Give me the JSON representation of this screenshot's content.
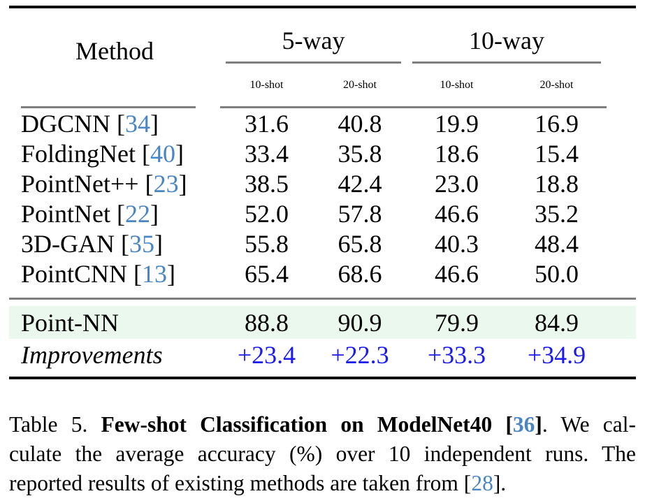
{
  "colors": {
    "cite_blue": "#4a86c4",
    "improvement_blue": "#1b1bee",
    "highlight_green": "#ebf8ed",
    "rule_black": "#101010",
    "rule_gray": "#7e7e7e"
  },
  "table": {
    "header": {
      "method_label": "Method",
      "groups": [
        {
          "label": "5-way"
        },
        {
          "label": "10-way"
        }
      ],
      "subheaders": [
        "10-shot",
        "20-shot",
        "10-shot",
        "20-shot"
      ]
    },
    "rows": [
      {
        "prefix": "DGCNN [",
        "cite": "34",
        "suffix": "]",
        "values": [
          "31.6",
          "40.8",
          "19.9",
          "16.9"
        ]
      },
      {
        "prefix": "FoldingNet [",
        "cite": "40",
        "suffix": "]",
        "values": [
          "33.4",
          "35.8",
          "18.6",
          "15.4"
        ]
      },
      {
        "prefix": "PointNet++ [",
        "cite": "23",
        "suffix": "]",
        "values": [
          "38.5",
          "42.4",
          "23.0",
          "18.8"
        ]
      },
      {
        "prefix": "PointNet [",
        "cite": "22",
        "suffix": "]",
        "values": [
          "52.0",
          "57.8",
          "46.6",
          "35.2"
        ]
      },
      {
        "prefix": "3D-GAN [",
        "cite": "35",
        "suffix": "]",
        "values": [
          "55.8",
          "65.8",
          "40.3",
          "48.4"
        ]
      },
      {
        "prefix": "PointCNN [",
        "cite": "13",
        "suffix": "]",
        "values": [
          "65.4",
          "68.6",
          "46.6",
          "50.0"
        ]
      }
    ],
    "highlight_row": {
      "label": "Point-NN",
      "values": [
        "88.8",
        "90.9",
        "79.9",
        "84.9"
      ]
    },
    "improvements_row": {
      "label": "Improvements",
      "values": [
        "+23.4",
        "+22.3",
        "+33.3",
        "+34.9"
      ]
    }
  },
  "caption": {
    "line1": {
      "prefix": "Table 5. ",
      "bold_open": "Few-shot Classification on ModelNet40 [",
      "cite": "36",
      "bold_close": "]",
      "tail": ". We cal-"
    },
    "line2": "culate the average accuracy (%) over 10 independent runs. The",
    "line3": {
      "prefix": "reported results of existing methods are taken from [",
      "cite": "28",
      "suffix": "]."
    }
  }
}
